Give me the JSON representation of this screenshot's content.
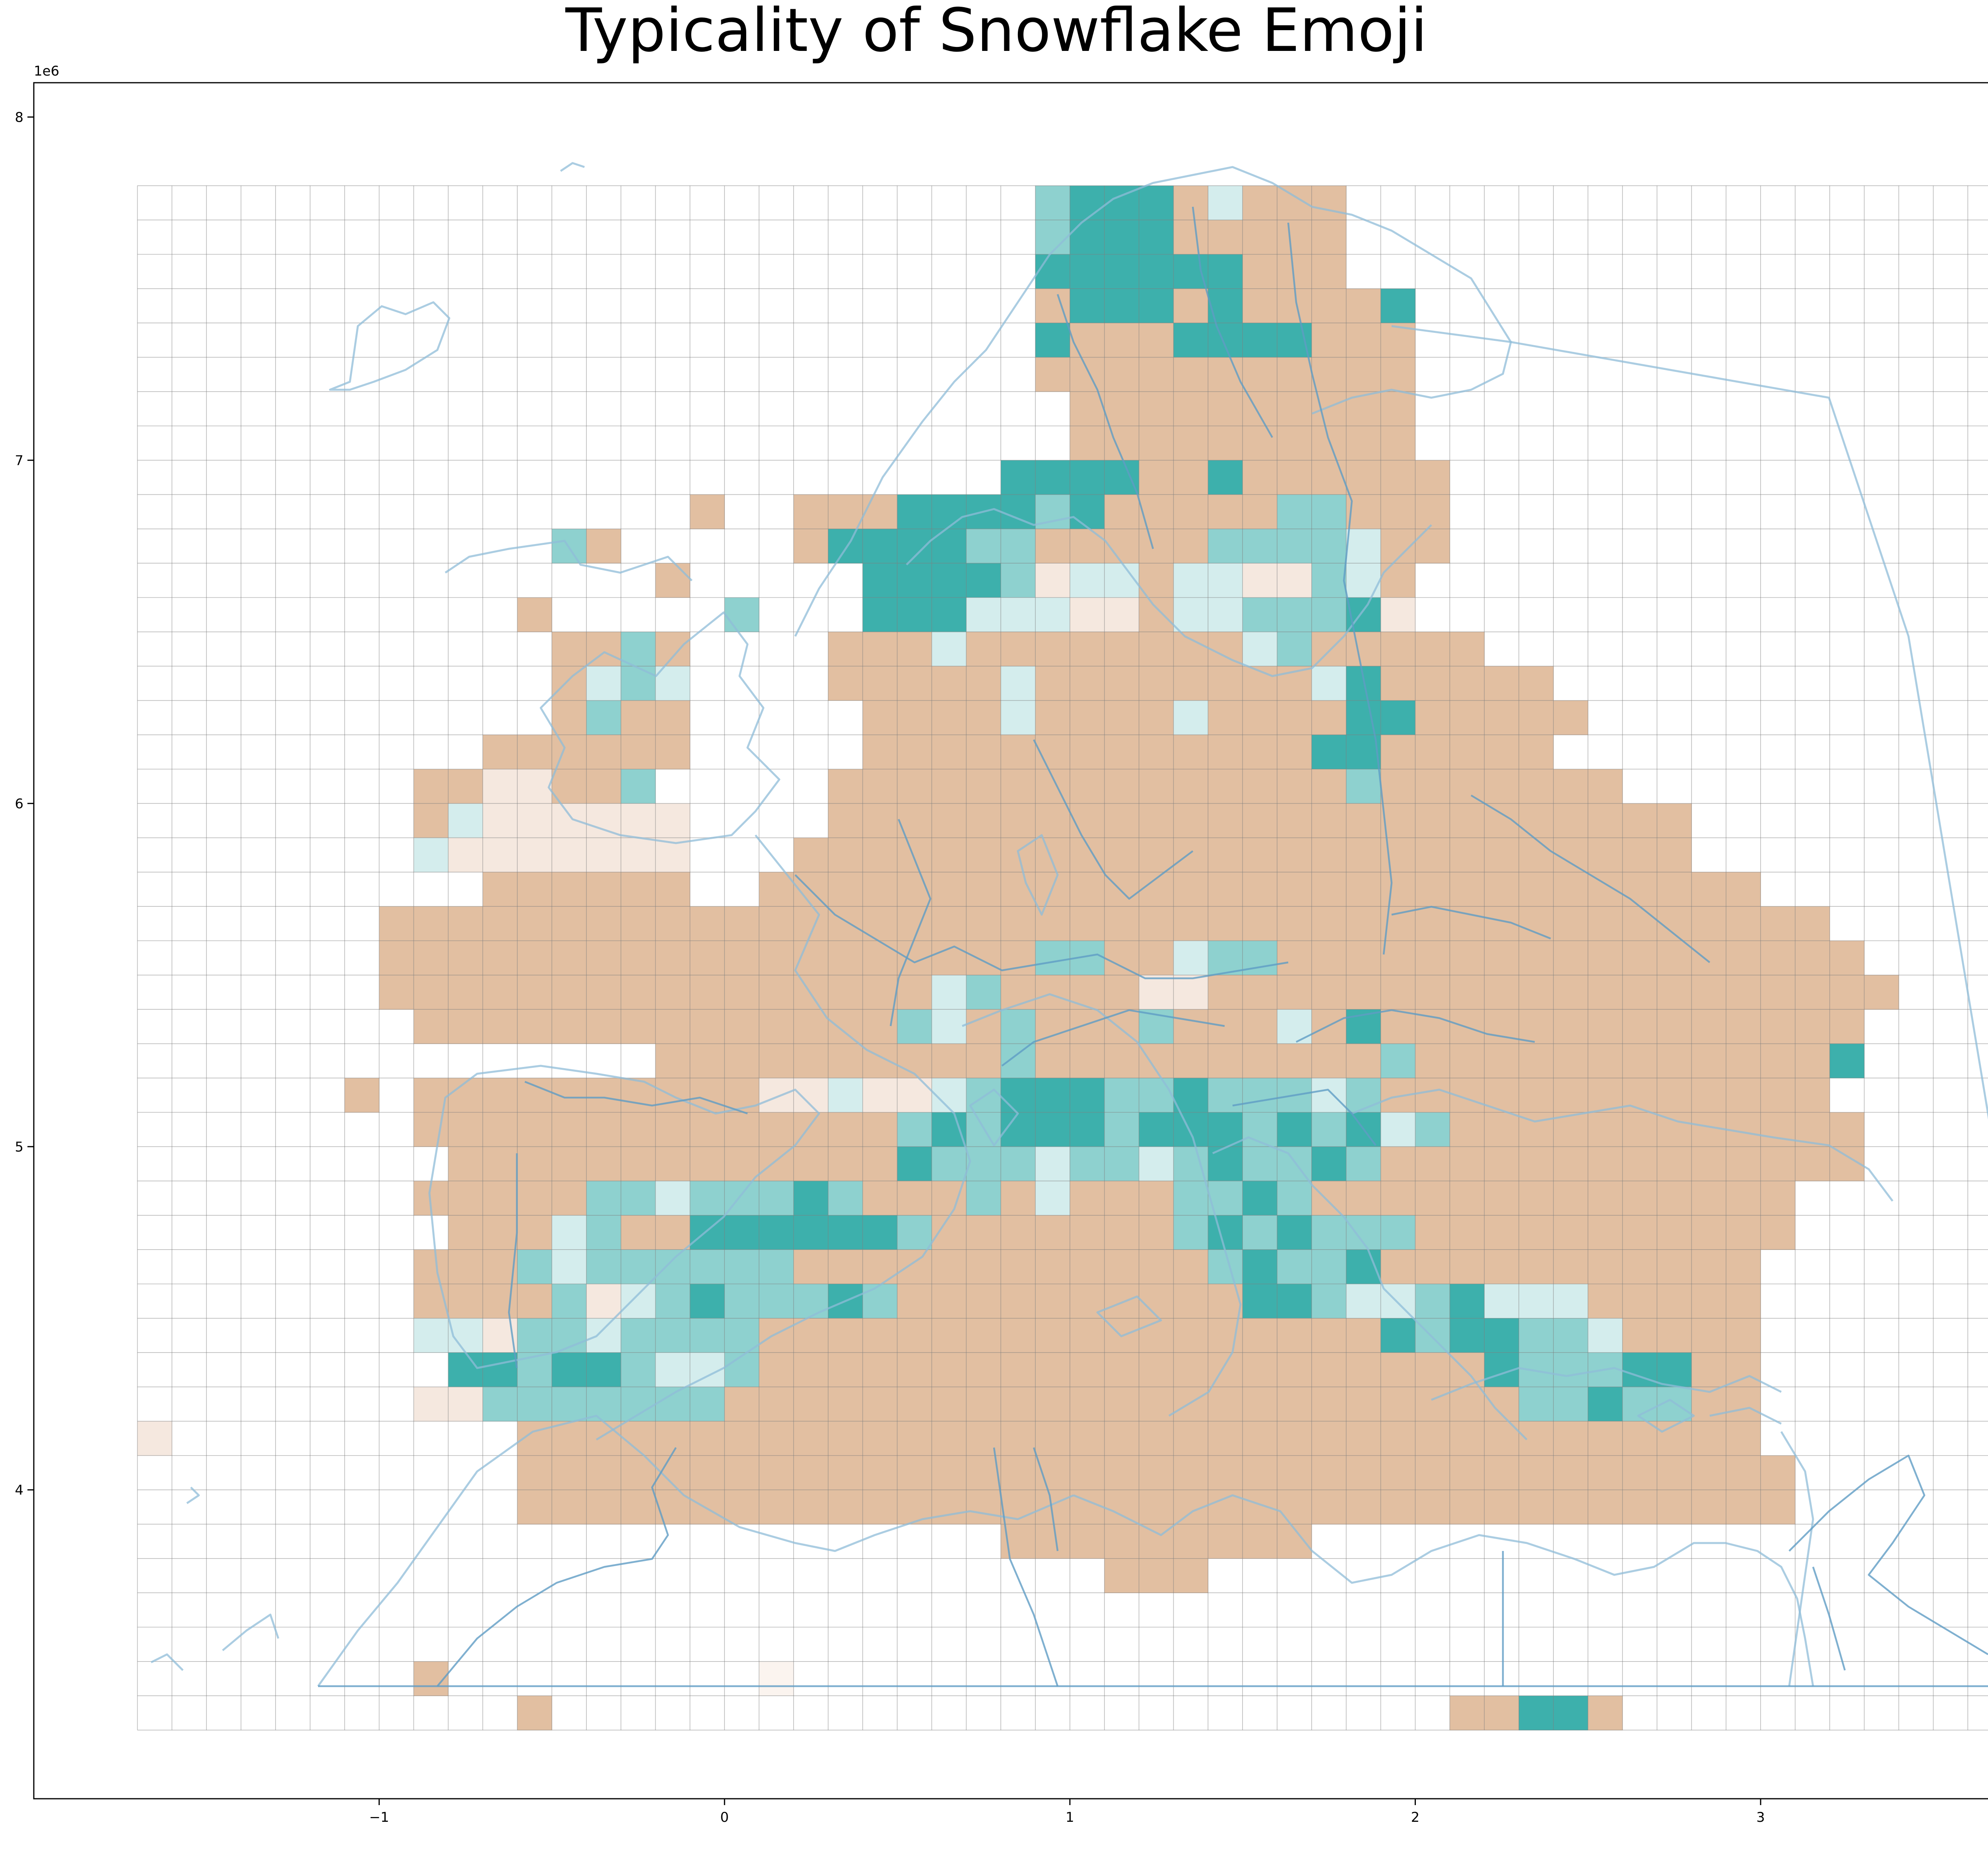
{
  "chart_data": {
    "type": "heatmap",
    "title": "Typicality of Snowflake Emoji",
    "x_tick_labels": [
      "−1",
      "0",
      "1",
      "2",
      "3"
    ],
    "y_tick_labels": [
      "4",
      "5",
      "6",
      "7",
      "8"
    ],
    "x_sci_label": "1e6",
    "y_sci_label": "1e6",
    "xlim": [
      -2000000,
      3800000
    ],
    "ylim": [
      3100000,
      8100000
    ],
    "grid": {
      "x0": -1700000,
      "y0": 3300000,
      "cell": 100000,
      "cols": 54,
      "rows": 45,
      "rows_top_to_bottom": [
        "..........................cbbbadaaa.................",
        "..........................cbbbaaaaa.................",
        "..........................bbbbbbaaa.................",
        "..........................abbbabaaaab...............",
        "..........................baaabbbbaaa...............",
        "..........................aaaaaaaaaaa...............",
        "...........................aaaaaaaaaa...............",
        "...........................aaaaaaaaaa...............",
        ".........................bbbbaabaaaaaa..............",
        "................a..aaabbbbcbaaaaaccaaa..............",
        "............ca.....abbbbccaaaaaccccdaa..............",
        "...............a.....bbbbceddaddeecda...............",
        "...........a.....c...bbbdddeeaddcccbe...............",
        "............aaca....aaadaaaaaaaadcaaaaa.............",
        "............adcd....aaaaadaaaaaaaadbaaaaa...........",
        "............acaa.....aaaadaaaadaaaabbaaaaa..........",
        "..........aaaaaa.....aaaaaaaaaaaaabbaaaaa...........",
        "........aaeeaac.....aaaaaaaaaaaaaaacaaaaaaa.........",
        "........adeeeeee....aaaaaaaaaaaaaaaaaaaaaaaaa.......",
        "........deeeeeee...aaaaaaaaaaaaaaaaaaaaaaaaaa.......",
        "..........aaaaaa..aaaaaaaaaaaaaaaaaaaaaaaaaaaaa.....",
        ".......aaaaaaaaaaaaaaaaaaaaaaaaaaaaaaaaaaaaaaaaaa...",
        ".......aaaaaaaaaaaaaaaaaaaaaaaaaaaaaaaaaaaaaaaaaaa..",
        ".......aaaaaaaaaaaaaaaaaaaaaaaaaaaaaaaaaaaaaaaaaaaa.",
        "........aaaaaaaaaaaaaaaaaaaaaaaaaaaaaaaaaaaaaaaaaa..",
        "...............aaaaaaaaaaaaaaaaaaaaaaaaaaaaaaaaaab..",
        "......a.aaaaaaaaaaaaaaaaaaaaaaaaaaaaaaaaaaaaaaaaa...",
        "........aaaaaaaaaaaaaaaaaaaaaaaaaaaaaaaaaaaaaaaaaa..",
        ".........aaaaaaaaaaaaaaaaaaaaaaaaaaaaaaaaaaaaaaaaa...",
        "........aaaaaaaaaaaaaaaaaaaaaaaaaaaaaaaaaaaaaaaa....",
        ".........aaaaaaaaaaaaaaaaaaaaaaaaaaaaaaaaaaaaaaa.....",
        "........aaaaaaaaaaaaaaaaaaaaaaaaaaaaaaaaaaaaaaa.....",
        "........aaaaaaaaaaaaaaaaaaaaaaaaaaaaaaaaaaaaaaa.....",
        ".........aaaaaaaaaaaaaaaaaaaaaaaaaaaaaaaaaaaaaa......",
        ".........aaaaaaaaaaaaaaaaaaaaaaaaaaaaaaaaaaaaaa......",
        "........aaaaaaaaaaaaaaaaaaaaaaaaaaaaaaaaaaaaaaa.....",
        "e..........aaaaaaaaaaaaaaaaaaaaaaaaaaaaaaaaaaaa.....",
        "...........aaaaaaaaaaaaaaaaaaaaaaaaaaaaaaaaaaaaa....",
        "...........aaaaaaaaaaaaaaaaaaaaaaaaaaaaaaaaaaaaa....",
        ".........................aaaaaaaaa..................",
        "............................aaa.....................",
        "....................................................",
        "....................................................",
        "........a.........f.................................",
        "...........a..........................aabba........."
      ],
      "overrides": [
        [
          23,
          24,
          "c"
        ],
        [
          23,
          23,
          "d"
        ],
        [
          22,
          26,
          "c"
        ],
        [
          22,
          27,
          "c"
        ],
        [
          22,
          30,
          "d"
        ],
        [
          22,
          31,
          "c"
        ],
        [
          22,
          32,
          "c"
        ],
        [
          23,
          29,
          "e"
        ],
        [
          23,
          30,
          "e"
        ],
        [
          24,
          22,
          "c"
        ],
        [
          24,
          23,
          "d"
        ],
        [
          24,
          25,
          "c"
        ],
        [
          25,
          25,
          "c"
        ],
        [
          24,
          29,
          "c"
        ],
        [
          24,
          33,
          "d"
        ],
        [
          24,
          35,
          "b"
        ],
        [
          25,
          36,
          "c"
        ],
        [
          26,
          18,
          "e"
        ],
        [
          26,
          19,
          "e"
        ],
        [
          26,
          20,
          "d"
        ],
        [
          26,
          21,
          "e"
        ],
        [
          26,
          22,
          "e"
        ],
        [
          26,
          23,
          "d"
        ],
        [
          26,
          24,
          "c"
        ],
        [
          26,
          25,
          "b"
        ],
        [
          26,
          26,
          "b"
        ],
        [
          26,
          27,
          "b"
        ],
        [
          26,
          28,
          "c"
        ],
        [
          26,
          29,
          "c"
        ],
        [
          26,
          30,
          "b"
        ],
        [
          26,
          31,
          "c"
        ],
        [
          26,
          32,
          "c"
        ],
        [
          26,
          33,
          "c"
        ],
        [
          26,
          34,
          "d"
        ],
        [
          26,
          35,
          "c"
        ],
        [
          27,
          22,
          "c"
        ],
        [
          27,
          23,
          "b"
        ],
        [
          27,
          24,
          "c"
        ],
        [
          27,
          25,
          "b"
        ],
        [
          27,
          26,
          "b"
        ],
        [
          27,
          27,
          "b"
        ],
        [
          27,
          28,
          "c"
        ],
        [
          27,
          29,
          "b"
        ],
        [
          27,
          30,
          "b"
        ],
        [
          27,
          31,
          "b"
        ],
        [
          27,
          32,
          "c"
        ],
        [
          27,
          33,
          "b"
        ],
        [
          27,
          34,
          "c"
        ],
        [
          27,
          35,
          "b"
        ],
        [
          27,
          36,
          "d"
        ],
        [
          27,
          37,
          "c"
        ],
        [
          28,
          22,
          "b"
        ],
        [
          28,
          23,
          "c"
        ],
        [
          28,
          24,
          "c"
        ],
        [
          28,
          25,
          "c"
        ],
        [
          28,
          26,
          "d"
        ],
        [
          28,
          27,
          "c"
        ],
        [
          28,
          28,
          "c"
        ],
        [
          28,
          29,
          "d"
        ],
        [
          28,
          30,
          "c"
        ],
        [
          28,
          31,
          "b"
        ],
        [
          28,
          32,
          "c"
        ],
        [
          28,
          33,
          "c"
        ],
        [
          28,
          34,
          "b"
        ],
        [
          28,
          35,
          "c"
        ],
        [
          29,
          13,
          "c"
        ],
        [
          29,
          14,
          "c"
        ],
        [
          29,
          15,
          "d"
        ],
        [
          29,
          16,
          "c"
        ],
        [
          29,
          17,
          "c"
        ],
        [
          29,
          18,
          "c"
        ],
        [
          29,
          19,
          "b"
        ],
        [
          29,
          20,
          "c"
        ],
        [
          29,
          24,
          "c"
        ],
        [
          29,
          26,
          "d"
        ],
        [
          29,
          30,
          "c"
        ],
        [
          29,
          31,
          "c"
        ],
        [
          29,
          32,
          "b"
        ],
        [
          29,
          33,
          "c"
        ],
        [
          30,
          12,
          "d"
        ],
        [
          30,
          13,
          "c"
        ],
        [
          30,
          16,
          "b"
        ],
        [
          30,
          17,
          "b"
        ],
        [
          30,
          18,
          "b"
        ],
        [
          30,
          19,
          "b"
        ],
        [
          30,
          20,
          "b"
        ],
        [
          30,
          21,
          "b"
        ],
        [
          30,
          22,
          "c"
        ],
        [
          30,
          30,
          "c"
        ],
        [
          30,
          31,
          "b"
        ],
        [
          30,
          32,
          "c"
        ],
        [
          30,
          33,
          "b"
        ],
        [
          30,
          34,
          "c"
        ],
        [
          30,
          35,
          "c"
        ],
        [
          30,
          36,
          "c"
        ],
        [
          31,
          11,
          "c"
        ],
        [
          31,
          12,
          "d"
        ],
        [
          31,
          13,
          "c"
        ],
        [
          31,
          14,
          "c"
        ],
        [
          31,
          15,
          "c"
        ],
        [
          31,
          16,
          "c"
        ],
        [
          31,
          17,
          "c"
        ],
        [
          31,
          18,
          "c"
        ],
        [
          31,
          31,
          "c"
        ],
        [
          31,
          32,
          "b"
        ],
        [
          31,
          33,
          "c"
        ],
        [
          31,
          34,
          "c"
        ],
        [
          31,
          35,
          "b"
        ],
        [
          32,
          12,
          "c"
        ],
        [
          32,
          13,
          "e"
        ],
        [
          32,
          14,
          "d"
        ],
        [
          32,
          15,
          "c"
        ],
        [
          32,
          16,
          "b"
        ],
        [
          32,
          17,
          "c"
        ],
        [
          32,
          18,
          "c"
        ],
        [
          32,
          19,
          "c"
        ],
        [
          32,
          20,
          "b"
        ],
        [
          32,
          21,
          "c"
        ],
        [
          32,
          32,
          "b"
        ],
        [
          32,
          33,
          "b"
        ],
        [
          32,
          34,
          "c"
        ],
        [
          32,
          35,
          "d"
        ],
        [
          32,
          36,
          "d"
        ],
        [
          32,
          37,
          "c"
        ],
        [
          32,
          38,
          "b"
        ],
        [
          32,
          39,
          "d"
        ],
        [
          32,
          40,
          "d"
        ],
        [
          32,
          41,
          "d"
        ],
        [
          33,
          8,
          "d"
        ],
        [
          33,
          9,
          "d"
        ],
        [
          33,
          10,
          "e"
        ],
        [
          33,
          11,
          "c"
        ],
        [
          33,
          12,
          "c"
        ],
        [
          33,
          13,
          "d"
        ],
        [
          33,
          14,
          "c"
        ],
        [
          33,
          15,
          "c"
        ],
        [
          33,
          16,
          "c"
        ],
        [
          33,
          17,
          "c"
        ],
        [
          33,
          36,
          "b"
        ],
        [
          33,
          37,
          "c"
        ],
        [
          33,
          38,
          "b"
        ],
        [
          33,
          39,
          "b"
        ],
        [
          33,
          40,
          "c"
        ],
        [
          33,
          41,
          "c"
        ],
        [
          33,
          42,
          "d"
        ],
        [
          34,
          9,
          "b"
        ],
        [
          34,
          10,
          "b"
        ],
        [
          34,
          11,
          "c"
        ],
        [
          34,
          12,
          "b"
        ],
        [
          34,
          13,
          "b"
        ],
        [
          34,
          14,
          "c"
        ],
        [
          34,
          15,
          "d"
        ],
        [
          34,
          16,
          "d"
        ],
        [
          34,
          17,
          "c"
        ],
        [
          34,
          39,
          "b"
        ],
        [
          34,
          40,
          "c"
        ],
        [
          34,
          41,
          "c"
        ],
        [
          34,
          42,
          "c"
        ],
        [
          34,
          43,
          "b"
        ],
        [
          34,
          44,
          "b"
        ],
        [
          35,
          8,
          "e"
        ],
        [
          35,
          9,
          "e"
        ],
        [
          35,
          10,
          "c"
        ],
        [
          35,
          11,
          "c"
        ],
        [
          35,
          12,
          "c"
        ],
        [
          35,
          13,
          "c"
        ],
        [
          35,
          14,
          "c"
        ],
        [
          35,
          15,
          "c"
        ],
        [
          35,
          16,
          "c"
        ],
        [
          35,
          40,
          "c"
        ],
        [
          35,
          41,
          "c"
        ],
        [
          35,
          42,
          "b"
        ],
        [
          35,
          43,
          "c"
        ],
        [
          35,
          44,
          "c"
        ]
      ]
    },
    "colors": {
      "a": "#e2bfa1",
      "b": "#3db0ac",
      "c": "#8ed1cf",
      "d": "#d4eded",
      "e": "#f5e8df",
      "f": "#fbf4ef"
    }
  }
}
